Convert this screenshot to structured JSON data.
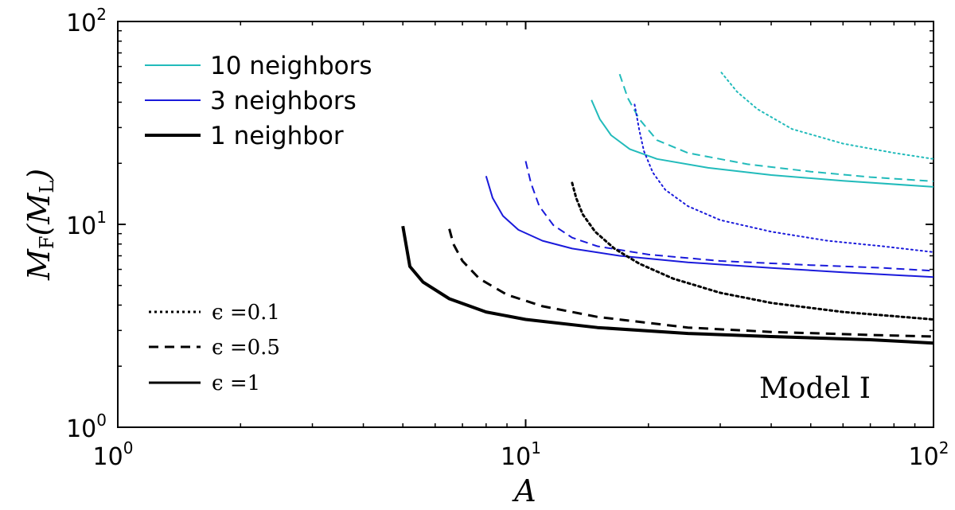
{
  "chart_data": {
    "type": "line",
    "xlabel": "A",
    "ylabel": {
      "main": "M",
      "main_sub": "F",
      "paren": "M",
      "paren_sub": "L"
    },
    "x_scale": "log",
    "y_scale": "log",
    "xlim": [
      1,
      100
    ],
    "ylim": [
      1,
      100
    ],
    "xticks": [
      {
        "value": 1,
        "base": "10",
        "exp": "0"
      },
      {
        "value": 10,
        "base": "10",
        "exp": "1"
      },
      {
        "value": 100,
        "base": "10",
        "exp": "2"
      }
    ],
    "yticks": [
      {
        "value": 1,
        "base": "10",
        "exp": "0"
      },
      {
        "value": 10,
        "base": "10",
        "exp": "1"
      },
      {
        "value": 100,
        "base": "10",
        "exp": "2"
      }
    ],
    "grid": false,
    "annotation": "Model I",
    "legend_colors": [
      {
        "label": "10 neighbors",
        "color": "#22bbbb",
        "width": 2
      },
      {
        "label": "3 neighbors",
        "color": "#1a1adb",
        "width": 2
      },
      {
        "label": "1 neighbor",
        "color": "#000000",
        "width": 4
      }
    ],
    "legend_styles": [
      {
        "label": "ϵ =0.1",
        "dash": "dotted"
      },
      {
        "label": "ϵ =0.5",
        "dash": "dashed"
      },
      {
        "label": "ϵ =1",
        "dash": "solid"
      }
    ],
    "series": [
      {
        "neighbors": "10 neighbors",
        "epsilon": "0.1",
        "color": "#22bbbb",
        "dash": "dotted",
        "width": 2,
        "points": [
          [
            30.2,
            56
          ],
          [
            33,
            45
          ],
          [
            37,
            37
          ],
          [
            45,
            29.5
          ],
          [
            60,
            25
          ],
          [
            80,
            22.5
          ],
          [
            100,
            21
          ]
        ]
      },
      {
        "neighbors": "10 neighbors",
        "epsilon": "0.5",
        "color": "#22bbbb",
        "dash": "dashed",
        "width": 2,
        "points": [
          [
            17,
            55
          ],
          [
            17.8,
            42
          ],
          [
            19,
            33
          ],
          [
            21,
            26
          ],
          [
            25,
            22.5
          ],
          [
            35,
            19.8
          ],
          [
            50,
            18.2
          ],
          [
            70,
            17.1
          ],
          [
            100,
            16.3
          ]
        ]
      },
      {
        "neighbors": "10 neighbors",
        "epsilon": "1",
        "color": "#22bbbb",
        "dash": "solid",
        "width": 2,
        "points": [
          [
            14.5,
            41
          ],
          [
            15.2,
            33
          ],
          [
            16.2,
            27.5
          ],
          [
            18,
            23.5
          ],
          [
            21,
            21
          ],
          [
            28,
            19
          ],
          [
            40,
            17.5
          ],
          [
            60,
            16.4
          ],
          [
            100,
            15.3
          ]
        ]
      },
      {
        "neighbors": "3 neighbors",
        "epsilon": "0.1",
        "color": "#1a1adb",
        "dash": "dotted",
        "width": 2,
        "points": [
          [
            18.5,
            39
          ],
          [
            19,
            29
          ],
          [
            19.5,
            23
          ],
          [
            20.5,
            18
          ],
          [
            22,
            14.8
          ],
          [
            25,
            12.3
          ],
          [
            30,
            10.5
          ],
          [
            40,
            9.2
          ],
          [
            55,
            8.3
          ],
          [
            75,
            7.8
          ],
          [
            100,
            7.3
          ]
        ]
      },
      {
        "neighbors": "3 neighbors",
        "epsilon": "0.5",
        "color": "#1a1adb",
        "dash": "dashed",
        "width": 2,
        "points": [
          [
            10,
            20.5
          ],
          [
            10.3,
            16
          ],
          [
            10.8,
            12.3
          ],
          [
            11.7,
            9.9
          ],
          [
            13,
            8.6
          ],
          [
            15,
            7.8
          ],
          [
            20,
            7.1
          ],
          [
            30,
            6.6
          ],
          [
            50,
            6.3
          ],
          [
            75,
            6.1
          ],
          [
            100,
            5.9
          ]
        ]
      },
      {
        "neighbors": "3 neighbors",
        "epsilon": "1",
        "color": "#1a1adb",
        "dash": "solid",
        "width": 2,
        "points": [
          [
            8,
            17.3
          ],
          [
            8.3,
            13.5
          ],
          [
            8.8,
            11
          ],
          [
            9.6,
            9.4
          ],
          [
            11,
            8.3
          ],
          [
            13,
            7.6
          ],
          [
            17,
            7.0
          ],
          [
            25,
            6.5
          ],
          [
            40,
            6.1
          ],
          [
            60,
            5.8
          ],
          [
            100,
            5.5
          ]
        ]
      },
      {
        "neighbors": "1 neighbor",
        "epsilon": "0.1",
        "color": "#000000",
        "dash": "dotted",
        "width": 3,
        "points": [
          [
            13,
            16
          ],
          [
            13.3,
            13.5
          ],
          [
            13.8,
            11.2
          ],
          [
            14.8,
            9.2
          ],
          [
            16.5,
            7.6
          ],
          [
            19,
            6.4
          ],
          [
            23,
            5.4
          ],
          [
            30,
            4.6
          ],
          [
            40,
            4.1
          ],
          [
            60,
            3.7
          ],
          [
            100,
            3.4
          ]
        ]
      },
      {
        "neighbors": "1 neighbor",
        "epsilon": "0.5",
        "color": "#000000",
        "dash": "dashed",
        "width": 3,
        "points": [
          [
            6.5,
            9.5
          ],
          [
            6.65,
            8.0
          ],
          [
            7.0,
            6.6
          ],
          [
            7.7,
            5.4
          ],
          [
            9,
            4.5
          ],
          [
            11,
            3.95
          ],
          [
            15,
            3.5
          ],
          [
            25,
            3.1
          ],
          [
            40,
            2.95
          ],
          [
            70,
            2.85
          ],
          [
            100,
            2.8
          ]
        ]
      },
      {
        "neighbors": "1 neighbor",
        "epsilon": "1",
        "color": "#000000",
        "dash": "solid",
        "width": 4,
        "points": [
          [
            5,
            9.8
          ],
          [
            5.2,
            6.2
          ],
          [
            5.6,
            5.2
          ],
          [
            6.5,
            4.3
          ],
          [
            8,
            3.7
          ],
          [
            10,
            3.4
          ],
          [
            15,
            3.1
          ],
          [
            25,
            2.9
          ],
          [
            40,
            2.8
          ],
          [
            70,
            2.7
          ],
          [
            100,
            2.6
          ]
        ]
      }
    ]
  }
}
